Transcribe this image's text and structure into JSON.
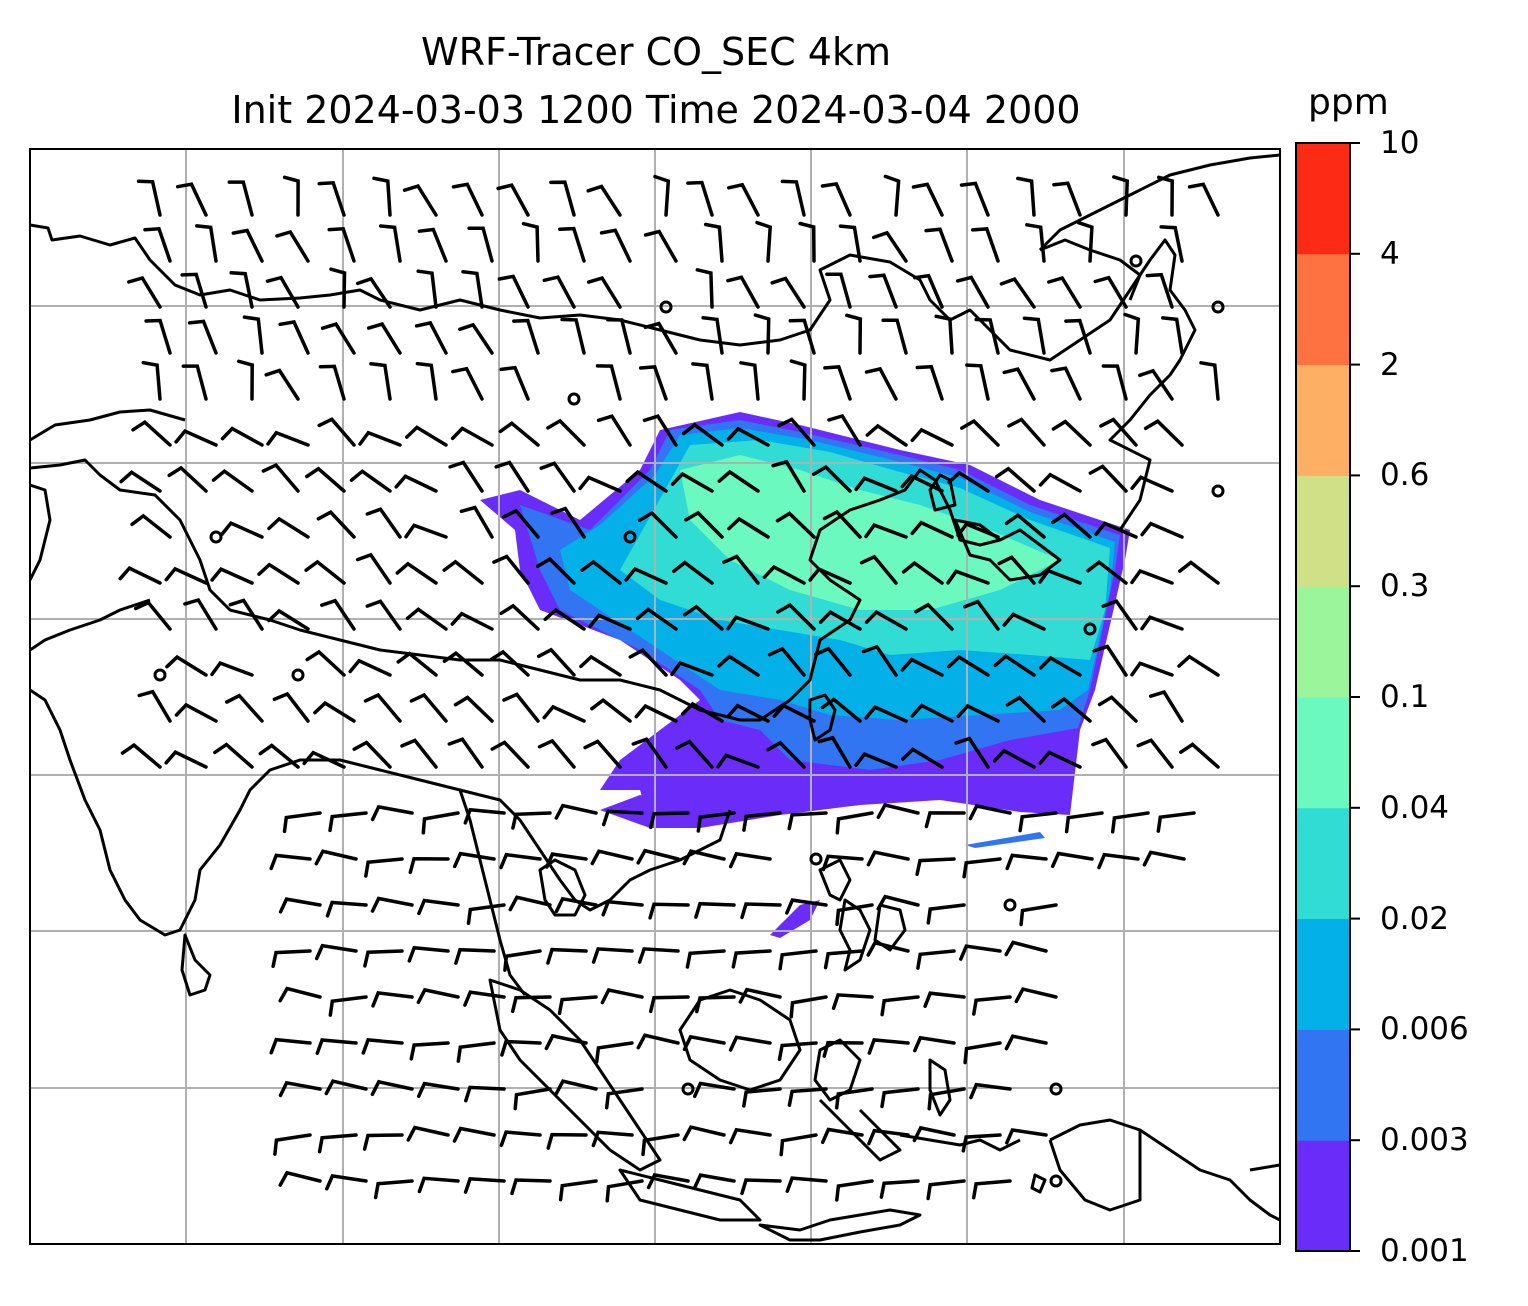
{
  "title": {
    "line1": "WRF-Tracer CO_SEC 4km",
    "line2": "Init 2024-03-03 1200 Time 2024-03-04 2000"
  },
  "colorbar": {
    "unit": "ppm",
    "levels": [
      "0.001",
      "0.003",
      "0.006",
      "0.02",
      "0.04",
      "0.1",
      "0.3",
      "0.6",
      "2",
      "4",
      "10"
    ],
    "colors": [
      "#6a2cf9",
      "#3175f3",
      "#04b0e8",
      "#30dcd4",
      "#6bf9c0",
      "#9bf69b",
      "#cfe086",
      "#fdb064",
      "#fe7141",
      "#fd2b15"
    ]
  },
  "map": {
    "background": "#ffffff",
    "gridline_color": "#b0b0b0",
    "coastline_color": "#000000"
  }
}
